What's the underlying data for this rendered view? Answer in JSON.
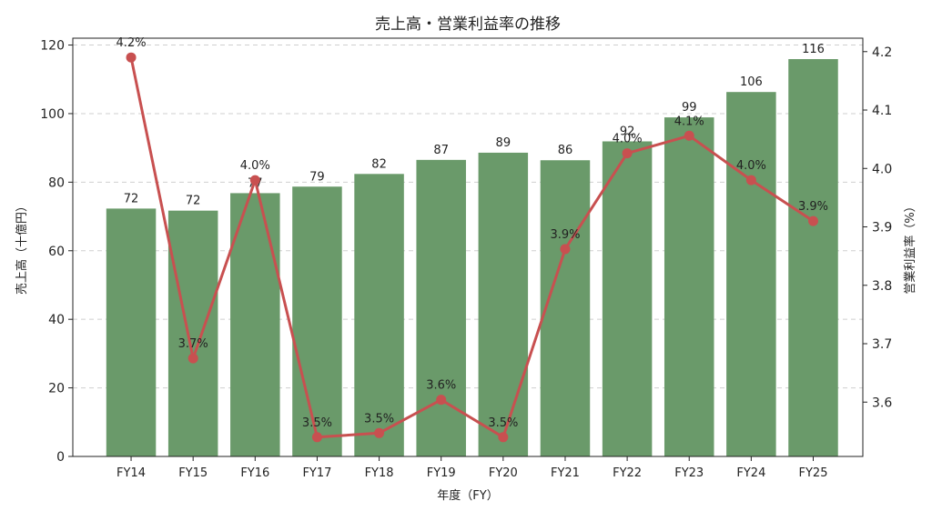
{
  "chart_data": {
    "type": "bar",
    "title": "売上高・営業利益率の推移",
    "xlabel": "年度（FY）",
    "ylabel": "売上高（十億円）",
    "y2label": "営業利益率（%）",
    "categories": [
      "FY14",
      "FY15",
      "FY16",
      "FY17",
      "FY18",
      "FY19",
      "FY20",
      "FY21",
      "FY22",
      "FY23",
      "FY24",
      "FY25"
    ],
    "series": [
      {
        "type": "bar",
        "axis": "left",
        "color": "#6a9a6a",
        "values": [
          72.3,
          71.7,
          76.8,
          78.7,
          82.4,
          86.5,
          88.6,
          86.4,
          91.9,
          98.9,
          106.3,
          115.9
        ],
        "labels": [
          "72",
          "72",
          "77",
          "79",
          "82",
          "87",
          "89",
          "86",
          "92",
          "99",
          "106",
          "116"
        ]
      },
      {
        "type": "line",
        "axis": "right",
        "color": "#c85050",
        "values": [
          4.19,
          3.675,
          3.98,
          3.54,
          3.547,
          3.604,
          3.54,
          3.862,
          4.026,
          4.056,
          3.98,
          3.91
        ],
        "labels": [
          "4.2%",
          "3.7%",
          "4.0%",
          "3.5%",
          "3.5%",
          "3.6%",
          "3.5%",
          "3.9%",
          "4.0%",
          "4.1%",
          "4.0%",
          "3.9%"
        ]
      }
    ],
    "ylim": [
      0,
      122
    ],
    "yticks": [
      0,
      20,
      40,
      60,
      80,
      100,
      120
    ],
    "y2lim": [
      3.507,
      4.223
    ],
    "y2ticks": [
      "3.6",
      "3.7",
      "3.8",
      "3.9",
      "4.0",
      "4.1",
      "4.2"
    ],
    "grid": "horizontal dashed"
  }
}
